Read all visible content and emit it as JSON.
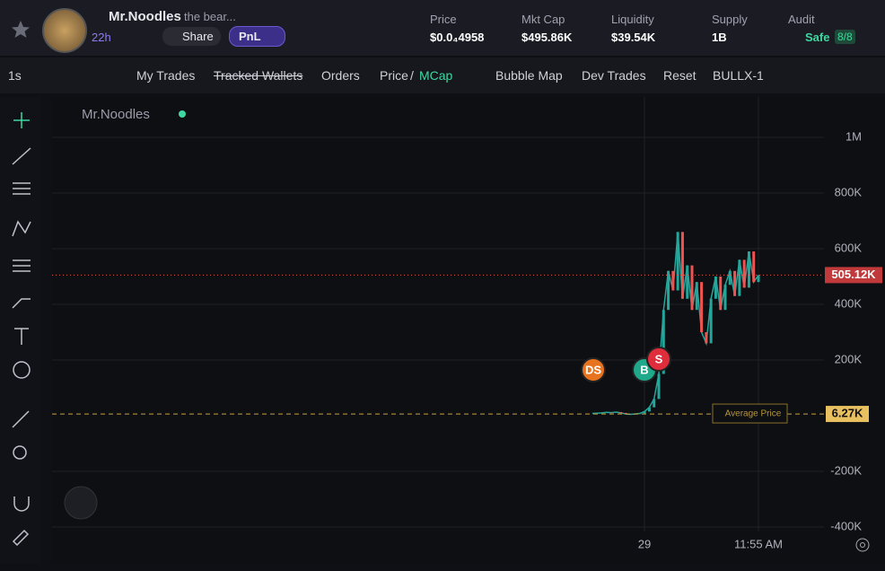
{
  "header": {
    "token_name": "Mr.Noodles",
    "token_desc": "the bear...",
    "age": "22h",
    "share": "Share",
    "pnl": "PnL",
    "stats": [
      {
        "label": "Price",
        "value": "$0.0₄4958"
      },
      {
        "label": "Mkt Cap",
        "value": "$495.86K"
      },
      {
        "label": "Liquidity",
        "value": "$39.54K"
      },
      {
        "label": "Supply",
        "value": "1B"
      },
      {
        "label": "Audit",
        "value": "Safe",
        "badge": "8/8"
      }
    ]
  },
  "toolbar": {
    "interval": "1s",
    "items": [
      "My Trades",
      "Tracked Wallets",
      "Orders",
      "Price",
      "/",
      "MCap",
      "Bubble Map",
      "Dev Trades",
      "Reset",
      "BULLX-1"
    ]
  },
  "chart": {
    "legend": "Mr.Noodles",
    "color": "#26a69a",
    "ylim": [
      -416000,
      1145000
    ],
    "yticks": [
      {
        "value": 1000000,
        "label": "1M"
      },
      {
        "value": 800000,
        "label": "800K"
      },
      {
        "value": 600000,
        "label": "600K"
      },
      {
        "value": 400000,
        "label": "400K"
      },
      {
        "value": 200000,
        "label": "200K"
      },
      {
        "value": -200000,
        "label": "-200K"
      },
      {
        "value": -400000,
        "label": "-400K"
      }
    ],
    "values": [
      8000,
      9000,
      10000,
      12000,
      11000,
      13000,
      10000,
      6000,
      5000,
      6000,
      8000,
      15000,
      30000,
      60000,
      150000,
      380000,
      520000,
      450000,
      660000,
      420000,
      540000,
      380000,
      480000,
      300000,
      260000,
      420000,
      500000,
      380000,
      470000,
      520000,
      430000,
      560000,
      460000,
      590000,
      480000,
      505120
    ],
    "last_price": {
      "value": 505120,
      "label": "505.12K"
    },
    "average_price": {
      "value": 6270,
      "label": "6.27K",
      "text": "Average Price"
    },
    "trades": [
      "DS",
      "B",
      "S"
    ],
    "x_labels": [
      "29",
      "11:55 AM"
    ]
  }
}
